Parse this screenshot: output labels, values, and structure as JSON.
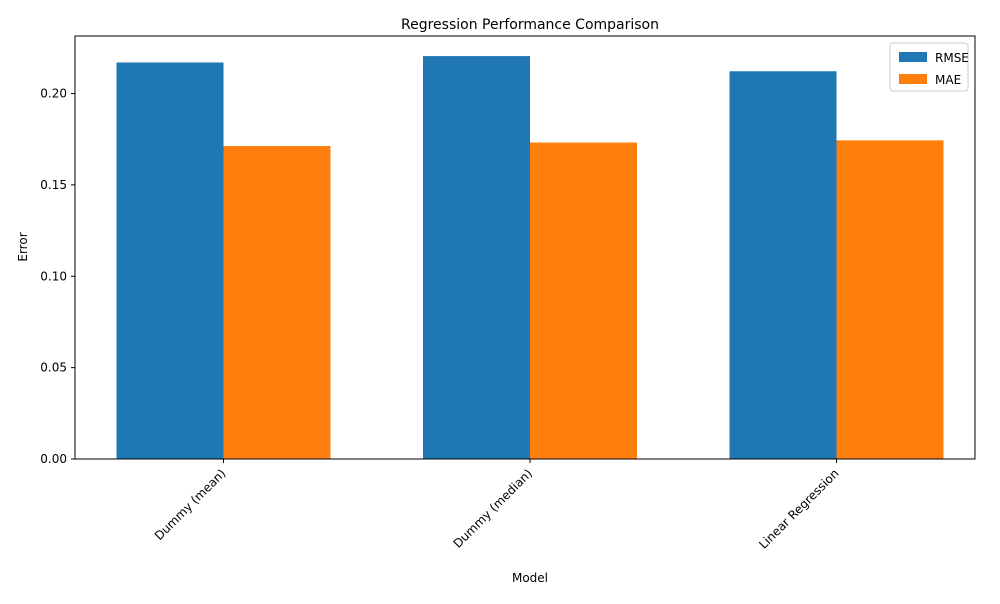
{
  "chart_data": {
    "type": "bar",
    "title": "Regression Performance Comparison",
    "xlabel": "Model",
    "ylabel": "Error",
    "categories": [
      "Dummy (mean)",
      "Dummy (median)",
      "Linear Regression"
    ],
    "series": [
      {
        "name": "RMSE",
        "color": "#1f77b4",
        "values": [
          0.217,
          0.2205,
          0.2122
        ]
      },
      {
        "name": "MAE",
        "color": "#ff7f0e",
        "values": [
          0.1713,
          0.1732,
          0.1744
        ]
      }
    ],
    "ylim": [
      0,
      0.2315
    ],
    "yticks": [
      0.0,
      0.05,
      0.1,
      0.15,
      0.2
    ],
    "ytick_labels": [
      "0.00",
      "0.05",
      "0.10",
      "0.15",
      "0.20"
    ],
    "grid": false,
    "legend_position": "top-right"
  }
}
